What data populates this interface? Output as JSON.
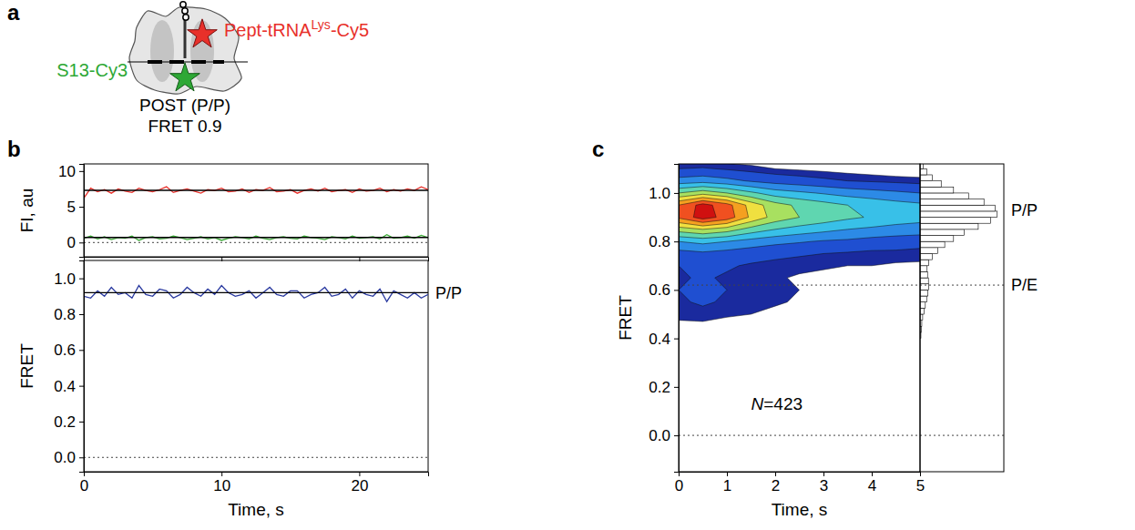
{
  "diagram": {
    "panel_label": "a",
    "labels": {
      "acceptor": [
        "Pept-tRNA",
        "Lys",
        "-Cy5"
      ],
      "donor": "S13-Cy3",
      "state": "POST (P/P)",
      "fret": "FRET 0.9"
    }
  },
  "chart_data": [
    {
      "type": "line",
      "panel_label": "b",
      "ylabel": "FI, au",
      "x": [
        0,
        0.5,
        1,
        1.5,
        2,
        2.5,
        3,
        3.5,
        4,
        4.5,
        5,
        5.5,
        6,
        6.5,
        7,
        7.5,
        8,
        8.5,
        9,
        9.5,
        10,
        10.5,
        11,
        11.5,
        12,
        12.5,
        13,
        13.5,
        14,
        14.5,
        15,
        15.5,
        16,
        16.5,
        17,
        17.5,
        18,
        18.5,
        19,
        19.5,
        20,
        20.5,
        21,
        21.5,
        22,
        22.5,
        23,
        23.5,
        24,
        24.5,
        25
      ],
      "xlim": [
        0,
        25
      ],
      "xticks": [
        0,
        10,
        20
      ],
      "ylim": [
        -2,
        11
      ],
      "yticks": [
        0,
        5,
        10
      ],
      "tick_labels": "y",
      "hlines": [
        0
      ],
      "series": [
        {
          "color": "#e8302a",
          "values": [
            6.2,
            7.6,
            7.1,
            7.4,
            6.9,
            7.5,
            7.2,
            7.0,
            7.6,
            7.3,
            7.1,
            7.4,
            7.8,
            7.0,
            7.3,
            7.5,
            7.2,
            6.9,
            7.4,
            7.3,
            7.6,
            7.1,
            7.2,
            7.5,
            7.0,
            7.4,
            7.3,
            7.7,
            7.1,
            7.2,
            7.4,
            6.9,
            7.3,
            7.5,
            7.2,
            7.6,
            7.1,
            7.3,
            7.4,
            7.0,
            7.5,
            7.2,
            7.3,
            7.6,
            7.1,
            7.4,
            7.2,
            7.5,
            7.3,
            7.8,
            7.4
          ]
        },
        {
          "color": "#3aaa35",
          "values": [
            0.6,
            0.9,
            0.5,
            0.8,
            0.4,
            0.7,
            0.6,
            0.9,
            0.3,
            0.7,
            0.8,
            0.5,
            0.6,
            0.9,
            0.7,
            0.4,
            0.6,
            0.8,
            0.5,
            0.7,
            0.3,
            0.6,
            0.8,
            0.7,
            0.5,
            0.9,
            0.6,
            0.4,
            0.7,
            0.8,
            0.6,
            0.5,
            0.9,
            0.7,
            0.6,
            0.4,
            0.8,
            0.7,
            0.5,
            0.9,
            0.6,
            0.7,
            0.8,
            0.5,
            1.1,
            0.6,
            0.7,
            0.9,
            0.6,
            1.0,
            0.7
          ]
        },
        {
          "color": "#000000",
          "x": [
            0,
            25
          ],
          "values": [
            7.3,
            7.3
          ]
        },
        {
          "color": "#000000",
          "x": [
            0,
            25
          ],
          "values": [
            0.7,
            0.7
          ]
        }
      ]
    },
    {
      "type": "line",
      "xlabel": "Time, s",
      "ylabel": "FRET",
      "x": [
        0,
        0.5,
        1,
        1.5,
        2,
        2.5,
        3,
        3.5,
        4,
        4.5,
        5,
        5.5,
        6,
        6.5,
        7,
        7.5,
        8,
        8.5,
        9,
        9.5,
        10,
        10.5,
        11,
        11.5,
        12,
        12.5,
        13,
        13.5,
        14,
        14.5,
        15,
        15.5,
        16,
        16.5,
        17,
        17.5,
        18,
        18.5,
        19,
        19.5,
        20,
        20.5,
        21,
        21.5,
        22,
        22.5,
        23,
        23.5,
        24,
        24.5,
        25
      ],
      "xlim": [
        0,
        25
      ],
      "xticks": [
        0,
        10,
        20
      ],
      "ylim": [
        -0.08,
        1.1
      ],
      "yticks": [
        {
          "value": 0,
          "label": "0.0"
        },
        0.2,
        0.4,
        0.6,
        0.8,
        {
          "value": 1,
          "label": "1.0"
        }
      ],
      "hlines": [
        0
      ],
      "annotations": [
        {
          "text": "P/P",
          "y": 0.92
        }
      ],
      "series": [
        {
          "color": "#2a3aa0",
          "values": [
            0.9,
            0.89,
            0.93,
            0.9,
            0.95,
            0.91,
            0.92,
            0.89,
            0.96,
            0.91,
            0.9,
            0.94,
            0.93,
            0.89,
            0.91,
            0.95,
            0.92,
            0.9,
            0.94,
            0.91,
            0.96,
            0.92,
            0.9,
            0.91,
            0.93,
            0.89,
            0.92,
            0.95,
            0.91,
            0.9,
            0.93,
            0.93,
            0.89,
            0.91,
            0.92,
            0.95,
            0.9,
            0.91,
            0.94,
            0.89,
            0.93,
            0.91,
            0.9,
            0.94,
            0.87,
            0.93,
            0.91,
            0.89,
            0.92,
            0.89,
            0.91
          ]
        },
        {
          "color": "#000000",
          "x": [
            0,
            25
          ],
          "values": [
            0.92,
            0.92
          ]
        }
      ]
    },
    {
      "type": "contour",
      "panel_label": "c",
      "xlabel": "Time, s",
      "ylabel": "FRET",
      "xlim": [
        0,
        5
      ],
      "xticks": [
        0,
        1,
        2,
        3,
        4,
        5
      ],
      "ylim": [
        -0.15,
        1.12
      ],
      "yticks": [
        {
          "value": 0,
          "label": "0.0"
        },
        0.2,
        0.4,
        0.6,
        0.8,
        {
          "value": 1,
          "label": "1.0"
        }
      ],
      "hlines": [
        0,
        0.62
      ],
      "annotations": [
        {
          "text": "P/P",
          "y": 0.93
        },
        {
          "text": "P/E",
          "y": 0.62
        }
      ],
      "count_label": [
        "N",
        "=423"
      ],
      "x": [
        0,
        0.5,
        1,
        1.5,
        2,
        2.5,
        3,
        3.5,
        4,
        4.5,
        5
      ],
      "y": [
        0.4,
        0.45,
        0.5,
        0.55,
        0.6,
        0.65,
        0.7,
        0.75,
        0.8,
        0.85,
        0.9,
        0.95,
        1.0,
        1.05,
        1.1,
        1.15
      ],
      "z": [
        [
          0,
          0,
          0,
          0,
          0,
          0,
          0,
          0,
          0,
          0,
          0
        ],
        [
          0.3,
          0.3,
          0.2,
          0.1,
          0,
          0,
          0,
          0,
          0,
          0,
          0
        ],
        [
          0.7,
          0.8,
          0.6,
          0.5,
          0.3,
          0.2,
          0,
          0,
          0,
          0,
          0
        ],
        [
          0.9,
          1.1,
          0.9,
          0.7,
          0.6,
          0.4,
          0.1,
          0,
          0,
          0,
          0
        ],
        [
          1.0,
          1.2,
          1.0,
          0.8,
          0.6,
          0.5,
          0.2,
          0.1,
          0,
          0,
          0
        ],
        [
          0.9,
          1.1,
          0.9,
          0.8,
          0.6,
          0.4,
          0.3,
          0.2,
          0.1,
          0.1,
          0
        ],
        [
          1.0,
          1.2,
          1.1,
          0.9,
          0.8,
          0.7,
          0.6,
          0.5,
          0.5,
          0.4,
          0.4
        ],
        [
          1.6,
          1.8,
          1.6,
          1.4,
          1.2,
          1.1,
          1.0,
          0.9,
          0.8,
          0.8,
          0.7
        ],
        [
          3.0,
          3.3,
          3.0,
          2.6,
          2.3,
          2.1,
          1.9,
          1.8,
          1.6,
          1.5,
          1.4
        ],
        [
          5.5,
          6.0,
          5.5,
          4.6,
          4.0,
          3.6,
          3.3,
          3.0,
          2.8,
          2.6,
          2.5
        ],
        [
          8.2,
          9.5,
          8.6,
          6.8,
          5.6,
          5.0,
          4.6,
          4.2,
          3.9,
          3.6,
          3.4
        ],
        [
          8.0,
          9.4,
          8.4,
          6.6,
          5.4,
          4.8,
          4.4,
          4.0,
          3.7,
          3.4,
          3.2
        ],
        [
          5.0,
          5.6,
          5.0,
          4.2,
          3.5,
          3.2,
          2.9,
          2.6,
          2.4,
          2.2,
          2.0
        ],
        [
          2.4,
          2.6,
          2.3,
          1.9,
          1.6,
          1.4,
          1.2,
          1.0,
          0.9,
          0.8,
          0.7
        ],
        [
          1.0,
          1.1,
          0.9,
          0.7,
          0.5,
          0.4,
          0.3,
          0.2,
          0.1,
          0,
          0
        ],
        [
          0,
          0,
          0,
          0,
          0,
          0,
          0,
          0,
          0,
          0,
          0
        ]
      ],
      "thresholds": [
        0.5,
        1,
        2,
        3,
        4,
        5,
        6,
        7,
        8,
        9
      ],
      "colors": [
        "#1a2a9e",
        "#1f4fd1",
        "#2c8ae6",
        "#38c0e8",
        "#5fd6b0",
        "#a8e060",
        "#f0e040",
        "#f5a020",
        "#f05020",
        "#d01010"
      ],
      "histogram": {
        "orientation": "horizontal",
        "xlim": [
          0,
          19
        ],
        "bins": [
          0.4,
          0.425,
          0.45,
          0.475,
          0.5,
          0.525,
          0.55,
          0.575,
          0.6,
          0.625,
          0.65,
          0.675,
          0.7,
          0.725,
          0.75,
          0.775,
          0.8,
          0.825,
          0.85,
          0.875,
          0.9,
          0.925,
          0.95,
          0.975,
          1.0,
          1.025,
          1.05,
          1.075,
          1.1,
          1.125,
          1.15
        ],
        "counts": [
          0.2,
          0.3,
          0.4,
          0.6,
          0.9,
          1.2,
          1.5,
          1.8,
          2.0,
          1.9,
          1.7,
          1.6,
          2.0,
          2.8,
          4.0,
          5.6,
          7.6,
          10.0,
          13.2,
          16.0,
          17.5,
          17.0,
          14.5,
          11.0,
          7.6,
          4.8,
          2.8,
          1.5,
          0.7,
          0.3
        ]
      }
    }
  ]
}
